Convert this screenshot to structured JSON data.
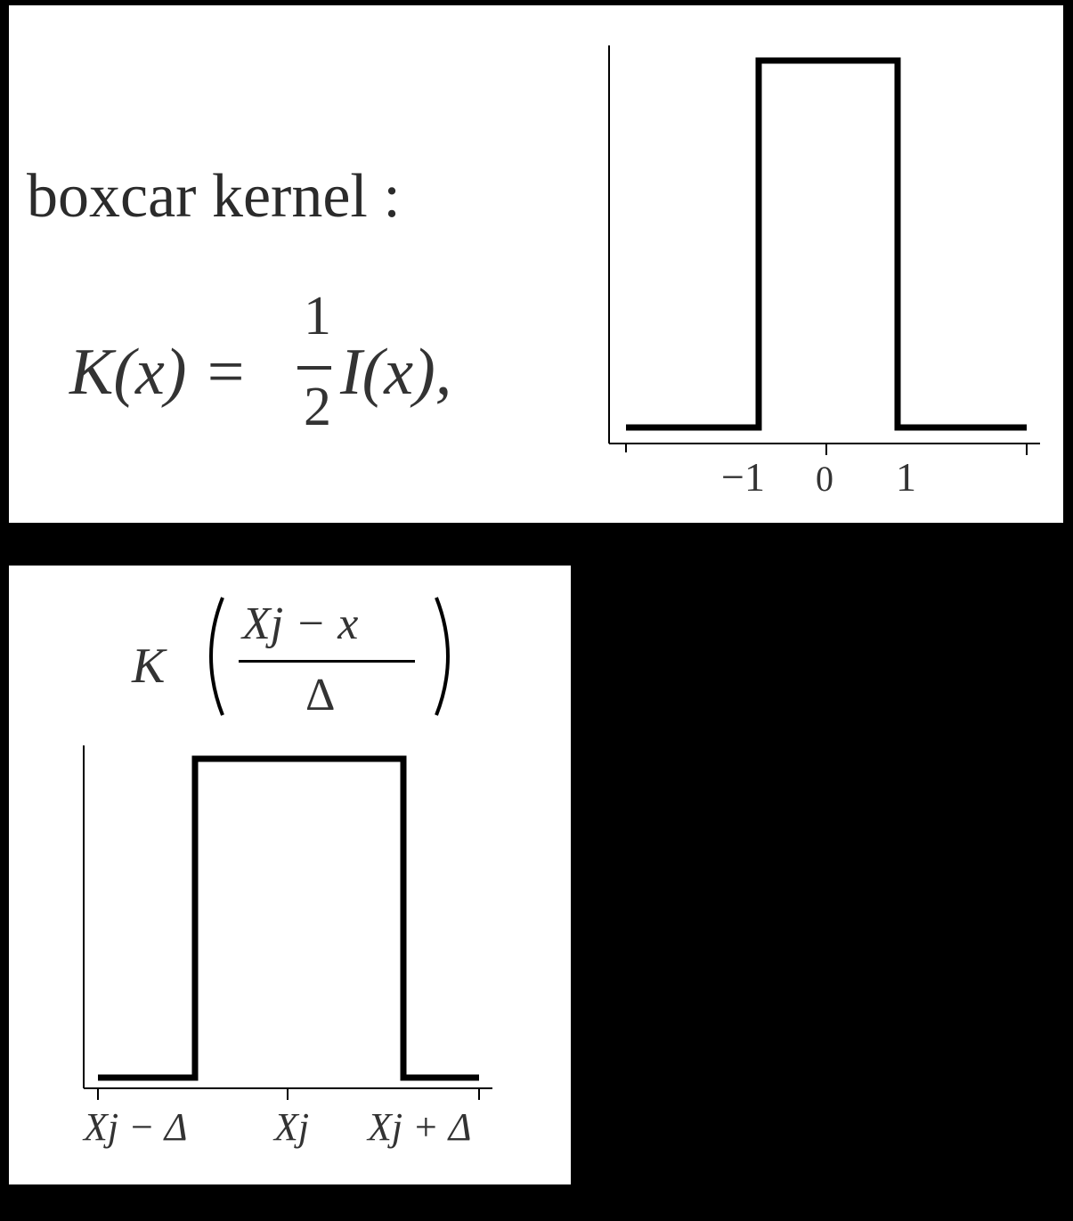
{
  "top": {
    "title": "boxcar kernel :",
    "formula": {
      "lhs": "K(x) =",
      "frac_num": "1",
      "frac_den": "2",
      "rhs": "I(x),"
    },
    "plot": {
      "tick_labels": [
        "−1",
        "0",
        "1"
      ],
      "box": {
        "x_start": -1,
        "x_end": 1,
        "height": 1
      },
      "x_range": [
        -1.95,
        1.95
      ]
    }
  },
  "bottom": {
    "formula": {
      "prefix": "K",
      "num": "Xj − x",
      "den": "Δ"
    },
    "plot": {
      "tick_labels": [
        "Xj − Δ",
        "Xj",
        "Xj + Δ"
      ],
      "box": {
        "x_start": -1,
        "x_end": 1,
        "height": 1
      }
    }
  },
  "colors": {
    "background": "#000000",
    "panel": "#ffffff",
    "ink": "#000000",
    "text": "#333333"
  }
}
